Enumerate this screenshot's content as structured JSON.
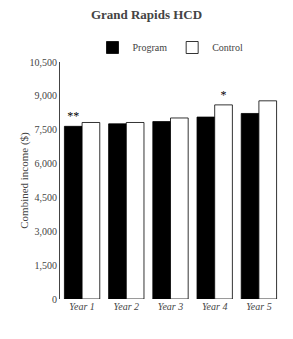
{
  "chart_data": {
    "type": "bar",
    "title": "Grand Rapids HCD",
    "ylabel": "Combined income ($)",
    "categories": [
      "Year 1",
      "Year 2",
      "Year 3",
      "Year 4",
      "Year 5"
    ],
    "series": [
      {
        "name": "Program",
        "color": "#000000",
        "values": [
          7650,
          7760,
          7860,
          8060,
          8220
        ]
      },
      {
        "name": "Control",
        "color": "#ffffff",
        "values": [
          7820,
          7820,
          8020,
          8600,
          8780
        ]
      }
    ],
    "annotations": [
      {
        "text": "**",
        "category": "Year 1",
        "series": "Program"
      },
      {
        "text": "*",
        "category": "Year 4",
        "series": "Control"
      }
    ],
    "ylim": [
      0,
      10500
    ],
    "yticks": [
      0,
      {
        "value": 1500,
        "label": "1,500"
      },
      {
        "value": 3000,
        "label": "3,000"
      },
      {
        "value": 4500,
        "label": "4,500"
      },
      {
        "value": 6000,
        "label": "6,000"
      },
      {
        "value": 7500,
        "label": "7,500"
      },
      {
        "value": 9000,
        "label": "9,000"
      },
      {
        "value": 10500,
        "label": "10,500"
      }
    ],
    "grid": false,
    "legend": "top"
  }
}
